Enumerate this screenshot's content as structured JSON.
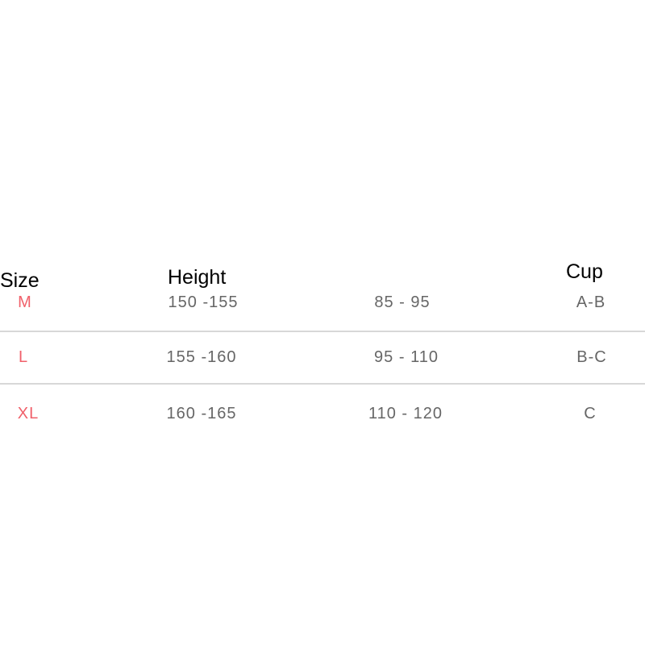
{
  "headers": {
    "size": "Size",
    "height": "Height",
    "cup": "Cup"
  },
  "rows": [
    {
      "size": "M",
      "height": "150 -155",
      "bust": "85 - 95",
      "cup": "A-B"
    },
    {
      "size": "L",
      "height": "155 -160",
      "bust": "95 - 110",
      "cup": "B-C"
    },
    {
      "size": "XL",
      "height": "160 -165",
      "bust": "110 - 120",
      "cup": "C"
    }
  ],
  "colors": {
    "size_text": "#f0606a",
    "value_text": "#666666",
    "divider": "#d8d8d8"
  }
}
